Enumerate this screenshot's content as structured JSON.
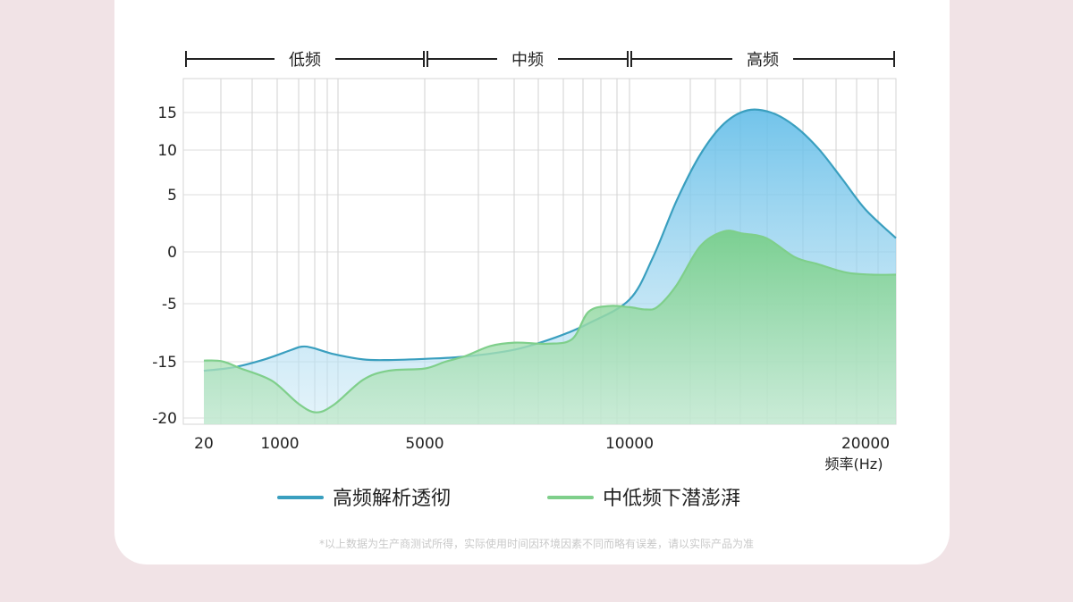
{
  "chart_data": {
    "type": "area",
    "bands": [
      {
        "label": "低频",
        "from": 20,
        "to": 5000
      },
      {
        "label": "中频",
        "from": 5000,
        "to": 10000
      },
      {
        "label": "高频",
        "from": 10000,
        "to": 20000
      }
    ],
    "y_ticks": [
      15,
      10,
      5,
      0,
      -5,
      -15,
      -20
    ],
    "x_ticks": [
      20,
      1000,
      5000,
      10000,
      20000
    ],
    "xlabel": "频率(Hz)",
    "series": [
      {
        "name": "高频解析透彻",
        "color": "#3a9fbf",
        "fill": "#8fd0f2",
        "points": [
          [
            20,
            -15.8
          ],
          [
            400,
            -15.5
          ],
          [
            800,
            -14.6
          ],
          [
            1300,
            -13.0
          ],
          [
            1600,
            -12.4
          ],
          [
            1900,
            -12.6
          ],
          [
            2500,
            -13.7
          ],
          [
            3300,
            -14.6
          ],
          [
            4000,
            -14.7
          ],
          [
            5000,
            -14.5
          ],
          [
            6000,
            -14.1
          ],
          [
            7200,
            -12.9
          ],
          [
            8200,
            -10.8
          ],
          [
            9000,
            -8.4
          ],
          [
            10000,
            -4.6
          ],
          [
            11000,
            -0.5
          ],
          [
            12000,
            4.5
          ],
          [
            13000,
            9.5
          ],
          [
            14000,
            13.5
          ],
          [
            15000,
            15.2
          ],
          [
            16000,
            15.0
          ],
          [
            17000,
            13.2
          ],
          [
            18000,
            10.2
          ],
          [
            19000,
            6.8
          ],
          [
            20000,
            3.7
          ],
          [
            21000,
            1.2
          ]
        ]
      },
      {
        "name": "中低频下潜澎湃",
        "color": "#7fcf8b",
        "fill": "#86d39a",
        "points": [
          [
            20,
            -14.8
          ],
          [
            250,
            -14.9
          ],
          [
            500,
            -15.6
          ],
          [
            900,
            -16.7
          ],
          [
            1500,
            -18.7
          ],
          [
            2000,
            -19.5
          ],
          [
            2500,
            -18.8
          ],
          [
            3300,
            -16.6
          ],
          [
            4000,
            -15.8
          ],
          [
            5000,
            -15.6
          ],
          [
            5500,
            -15.0
          ],
          [
            6000,
            -14.0
          ],
          [
            6600,
            -12.3
          ],
          [
            7200,
            -11.7
          ],
          [
            8000,
            -11.9
          ],
          [
            8600,
            -11.1
          ],
          [
            9000,
            -6.4
          ],
          [
            9500,
            -5.4
          ],
          [
            10000,
            -5.6
          ],
          [
            10700,
            -6.0
          ],
          [
            11200,
            -5.5
          ],
          [
            12000,
            -3.2
          ],
          [
            13000,
            0.5
          ],
          [
            14000,
            1.8
          ],
          [
            14800,
            1.6
          ],
          [
            15800,
            1.2
          ],
          [
            17000,
            -0.5
          ],
          [
            18000,
            -1.2
          ],
          [
            19200,
            -2.0
          ],
          [
            20200,
            -2.2
          ],
          [
            21000,
            -2.2
          ]
        ]
      }
    ],
    "legend": [
      "高频解析透彻",
      "中低频下潜澎湃"
    ]
  },
  "footnote": "*以上数据为生产商测试所得，实际使用时间因环境因素不同而略有误差，请以实际产品为准"
}
